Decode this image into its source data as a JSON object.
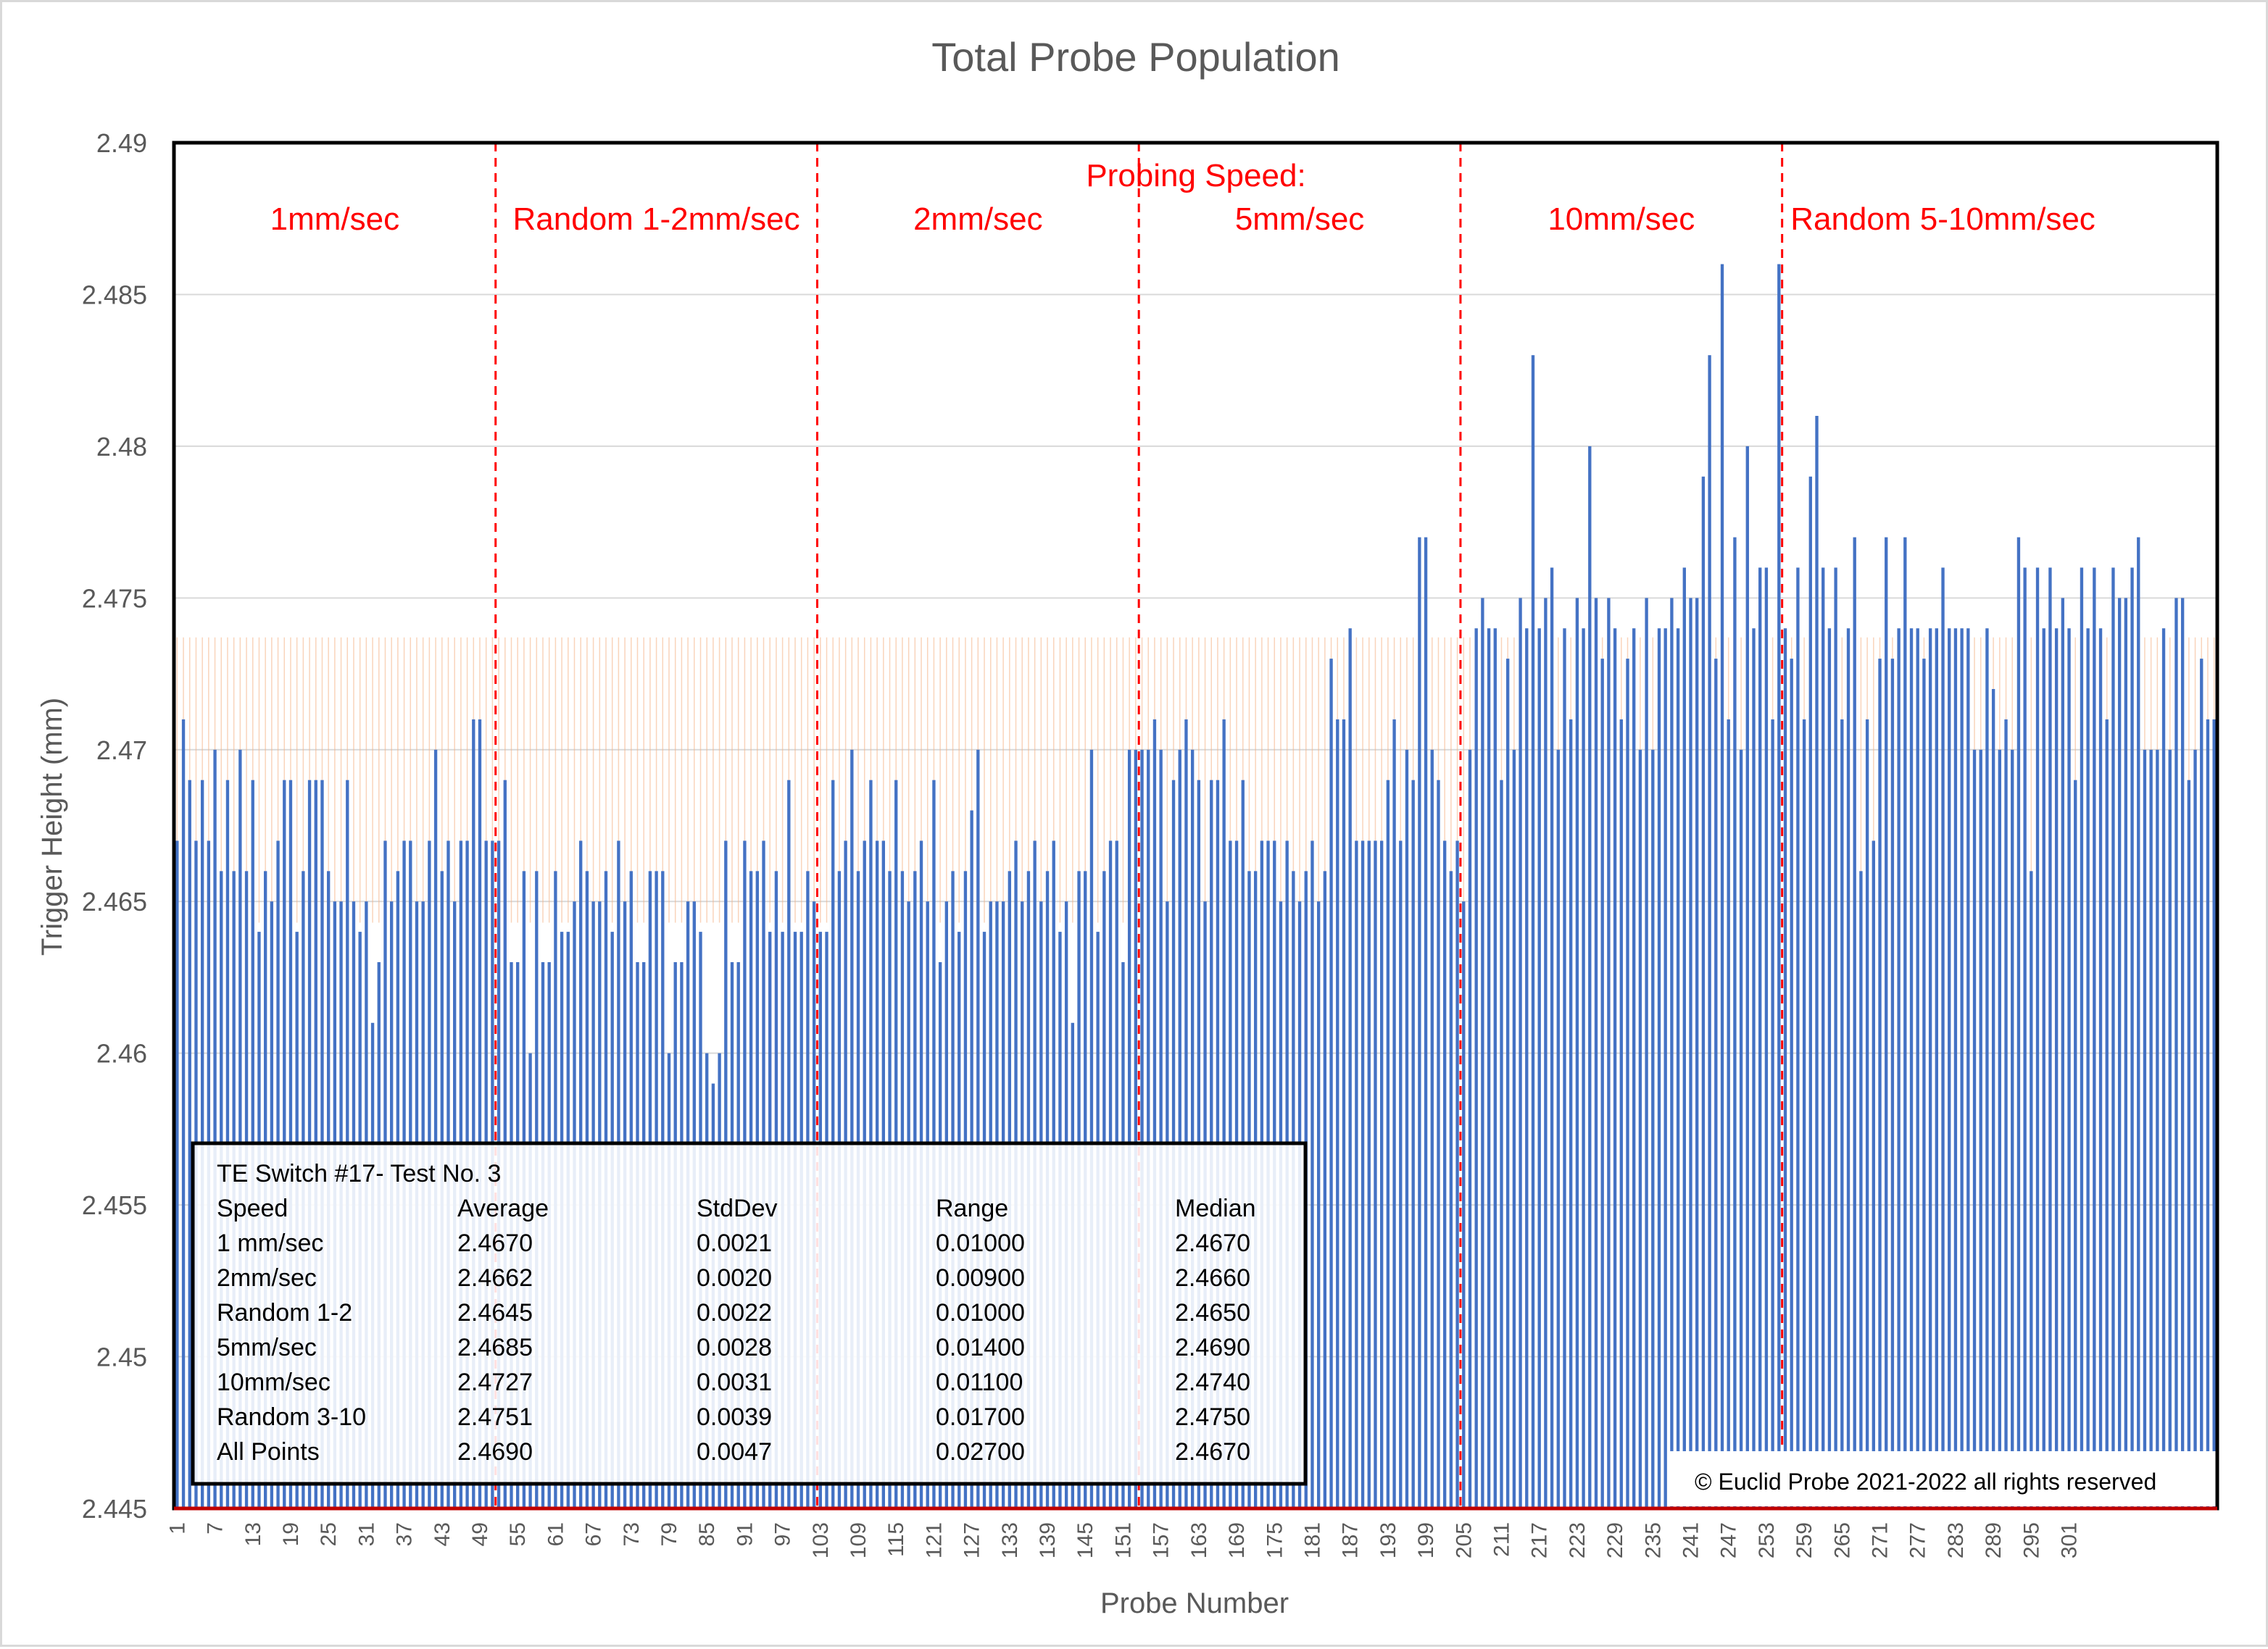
{
  "chart_data": {
    "type": "bar",
    "title": "Total Probe Population",
    "xlabel": "Probe Number",
    "ylabel": "Trigger Height (mm)",
    "ylim": [
      2.445,
      2.49
    ],
    "yticks": [
      "2.445",
      "2.45",
      "2.455",
      "2.46",
      "2.465",
      "2.47",
      "2.475",
      "2.48",
      "2.485",
      "2.49"
    ],
    "xticks": [
      "1",
      "7",
      "13",
      "19",
      "25",
      "31",
      "37",
      "43",
      "49",
      "55",
      "61",
      "67",
      "73",
      "79",
      "85",
      "91",
      "97",
      "103",
      "109",
      "115",
      "121",
      "127",
      "133",
      "139",
      "145",
      "151",
      "157",
      "163",
      "169",
      "175",
      "181",
      "187",
      "193",
      "199",
      "205",
      "211",
      "217",
      "223",
      "229",
      "235",
      "241",
      "247",
      "253",
      "259",
      "265",
      "271",
      "277",
      "283",
      "289",
      "295",
      "301"
    ],
    "grid": true,
    "legend": "none",
    "color": "#4472c4",
    "band": {
      "low": 2.4643,
      "high": 2.4737,
      "color": "#f4b183"
    },
    "series": [
      {
        "values": [
          2.467,
          2.471,
          2.469,
          2.467,
          2.469,
          2.467,
          2.47,
          2.466,
          2.469,
          2.466,
          2.47,
          2.466,
          2.469,
          2.464,
          2.466,
          2.465,
          2.467,
          2.469,
          2.469,
          2.464,
          2.466,
          2.469,
          2.469,
          2.469,
          2.466,
          2.465,
          2.465,
          2.469,
          2.465,
          2.464,
          2.465,
          2.461,
          2.463,
          2.467,
          2.465,
          2.466,
          2.467,
          2.467,
          2.465,
          2.465,
          2.467,
          2.47,
          2.466,
          2.467,
          2.465,
          2.467,
          2.467,
          2.471,
          2.471,
          2.467,
          2.467,
          2.467,
          2.469,
          2.463,
          2.463,
          2.466,
          2.46,
          2.466,
          2.463,
          2.463,
          2.466,
          2.464,
          2.464,
          2.465,
          2.467,
          2.466,
          2.465,
          2.465,
          2.466,
          2.464,
          2.467,
          2.465,
          2.466,
          2.463,
          2.463,
          2.466,
          2.466,
          2.466,
          2.46,
          2.463,
          2.463,
          2.465,
          2.465,
          2.464,
          2.46,
          2.459,
          2.46,
          2.467,
          2.463,
          2.463,
          2.467,
          2.466,
          2.466,
          2.467,
          2.464,
          2.466,
          2.464,
          2.469,
          2.464,
          2.464,
          2.466,
          2.465,
          2.464,
          2.464,
          2.469,
          2.466,
          2.467,
          2.47,
          2.466,
          2.467,
          2.469,
          2.467,
          2.467,
          2.466,
          2.469,
          2.466,
          2.465,
          2.466,
          2.467,
          2.465,
          2.469,
          2.463,
          2.465,
          2.466,
          2.464,
          2.466,
          2.468,
          2.47,
          2.464,
          2.465,
          2.465,
          2.465,
          2.466,
          2.467,
          2.465,
          2.466,
          2.467,
          2.465,
          2.466,
          2.467,
          2.464,
          2.465,
          2.461,
          2.466,
          2.466,
          2.47,
          2.464,
          2.466,
          2.467,
          2.467,
          2.463,
          2.47,
          2.47,
          2.47,
          2.47,
          2.471,
          2.47,
          2.465,
          2.469,
          2.47,
          2.471,
          2.47,
          2.469,
          2.465,
          2.469,
          2.469,
          2.471,
          2.467,
          2.467,
          2.469,
          2.466,
          2.466,
          2.467,
          2.467,
          2.467,
          2.465,
          2.467,
          2.466,
          2.465,
          2.466,
          2.467,
          2.465,
          2.466,
          2.473,
          2.471,
          2.471,
          2.474,
          2.467,
          2.467,
          2.467,
          2.467,
          2.467,
          2.469,
          2.471,
          2.467,
          2.47,
          2.469,
          2.477,
          2.477,
          2.47,
          2.469,
          2.467,
          2.466,
          2.467,
          2.465,
          2.47,
          2.474,
          2.475,
          2.474,
          2.474,
          2.469,
          2.473,
          2.47,
          2.475,
          2.474,
          2.483,
          2.474,
          2.475,
          2.476,
          2.47,
          2.474,
          2.471,
          2.475,
          2.474,
          2.48,
          2.475,
          2.473,
          2.475,
          2.474,
          2.471,
          2.473,
          2.474,
          2.47,
          2.475,
          2.47,
          2.474,
          2.474,
          2.475,
          2.474,
          2.476,
          2.475,
          2.475,
          2.479,
          2.483,
          2.473,
          2.486,
          2.471,
          2.477,
          2.47,
          2.48,
          2.474,
          2.476,
          2.476,
          2.471,
          2.486,
          2.474,
          2.473,
          2.476,
          2.471,
          2.479,
          2.481,
          2.476,
          2.474,
          2.476,
          2.471,
          2.474,
          2.477,
          2.466,
          2.471,
          2.467,
          2.473,
          2.477,
          2.473,
          2.474,
          2.477,
          2.474,
          2.474,
          2.473,
          2.474,
          2.474,
          2.476,
          2.474,
          2.474,
          2.474,
          2.474,
          2.47,
          2.47,
          2.474,
          2.472,
          2.47,
          2.471,
          2.47,
          2.477,
          2.476,
          2.466,
          2.476,
          2.474,
          2.476,
          2.474,
          2.475,
          2.474,
          2.469,
          2.476,
          2.474,
          2.476,
          2.474,
          2.471,
          2.476,
          2.475,
          2.475,
          2.476,
          2.477,
          2.47,
          2.47,
          2.47,
          2.474,
          2.47,
          2.475,
          2.475,
          2.469,
          2.47,
          2.473,
          2.471,
          2.471
        ]
      }
    ],
    "speed_header": "Probing Speed:",
    "sections": [
      {
        "label": "1mm/sec",
        "end": 51
      },
      {
        "label": "Random 1-2mm/sec",
        "end": 102
      },
      {
        "label": "2mm/sec",
        "end": 153
      },
      {
        "label": "5mm/sec",
        "end": 204
      },
      {
        "label": "10mm/sec",
        "end": 255
      },
      {
        "label": "Random 5-10mm/sec",
        "end": 306
      }
    ],
    "divider_color": "#ff0000",
    "stats": {
      "title": "TE Switch #17- Test No. 3",
      "headers": [
        "Speed",
        "Average",
        "StdDev",
        "Range",
        "Median"
      ],
      "rows": [
        [
          "1 mm/sec",
          "2.4670",
          "0.0021",
          "0.01000",
          "2.4670"
        ],
        [
          "2mm/sec",
          "2.4662",
          "0.0020",
          "0.00900",
          "2.4660"
        ],
        [
          "Random 1-2",
          "2.4645",
          "0.0022",
          "0.01000",
          "2.4650"
        ],
        [
          "5mm/sec",
          "2.4685",
          "0.0028",
          "0.01400",
          "2.4690"
        ],
        [
          "10mm/sec",
          "2.4727",
          "0.0031",
          "0.01100",
          "2.4740"
        ],
        [
          "Random 3-10",
          "2.4751",
          "0.0039",
          "0.01700",
          "2.4750"
        ],
        [
          "All Points",
          "2.4690",
          "0.0047",
          "0.02700",
          "2.4670"
        ]
      ]
    },
    "copyright": "© Euclid Probe 2021-2022  all rights reserved"
  }
}
